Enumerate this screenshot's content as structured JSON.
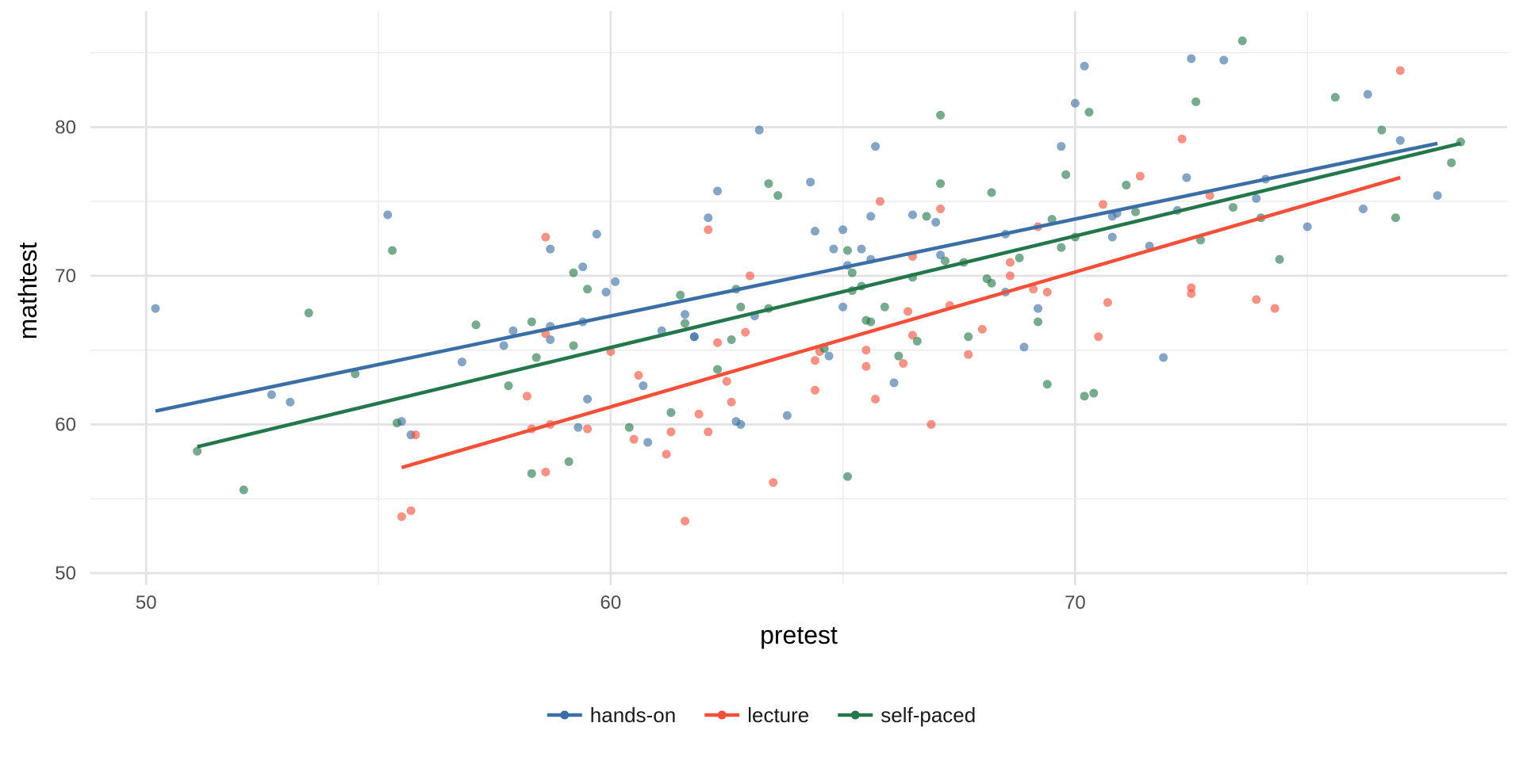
{
  "chart_data": {
    "type": "scatter",
    "title": "",
    "xlabel": "pretest",
    "ylabel": "mathtest",
    "xlim": [
      48.8,
      79.3
    ],
    "ylim": [
      49.2,
      87.8
    ],
    "x_ticks": [
      50,
      60,
      70
    ],
    "y_ticks": [
      50,
      60,
      70,
      80
    ],
    "x_minor_ticks": [
      55,
      65,
      75
    ],
    "y_minor_ticks": [
      55,
      65,
      75,
      85
    ],
    "grid": true,
    "legend_position": "bottom",
    "colors": {
      "hands-on": "#3a6ea5",
      "lecture": "#f44f39",
      "self-paced": "#24774a"
    },
    "series": [
      {
        "name": "hands-on",
        "trend": [
          [
            50.2,
            60.9
          ],
          [
            77.8,
            78.9
          ]
        ],
        "points": [
          [
            50.2,
            67.8
          ],
          [
            52.7,
            62.0
          ],
          [
            53.1,
            61.5
          ],
          [
            55.2,
            74.1
          ],
          [
            55.5,
            60.2
          ],
          [
            55.7,
            59.3
          ],
          [
            56.8,
            64.2
          ],
          [
            57.7,
            65.3
          ],
          [
            57.9,
            66.3
          ],
          [
            58.7,
            65.7
          ],
          [
            58.7,
            66.6
          ],
          [
            58.7,
            71.8
          ],
          [
            59.3,
            59.8
          ],
          [
            59.4,
            66.9
          ],
          [
            59.4,
            70.6
          ],
          [
            59.5,
            61.7
          ],
          [
            59.7,
            72.8
          ],
          [
            59.9,
            68.9
          ],
          [
            60.1,
            69.6
          ],
          [
            60.7,
            62.6
          ],
          [
            60.8,
            58.8
          ],
          [
            61.1,
            66.3
          ],
          [
            61.6,
            67.4
          ],
          [
            61.8,
            65.9
          ],
          [
            61.8,
            65.9
          ],
          [
            62.1,
            73.9
          ],
          [
            62.3,
            75.7
          ],
          [
            62.7,
            60.2
          ],
          [
            62.8,
            60.0
          ],
          [
            63.1,
            67.3
          ],
          [
            63.2,
            79.8
          ],
          [
            63.8,
            60.6
          ],
          [
            64.3,
            76.3
          ],
          [
            64.4,
            73.0
          ],
          [
            64.7,
            64.6
          ],
          [
            64.8,
            71.8
          ],
          [
            65.0,
            67.9
          ],
          [
            65.0,
            73.1
          ],
          [
            65.1,
            70.7
          ],
          [
            65.4,
            71.8
          ],
          [
            65.6,
            74.0
          ],
          [
            65.6,
            71.1
          ],
          [
            65.7,
            78.7
          ],
          [
            66.1,
            62.8
          ],
          [
            66.5,
            74.1
          ],
          [
            67.0,
            73.6
          ],
          [
            67.1,
            71.4
          ],
          [
            68.5,
            68.9
          ],
          [
            68.5,
            72.8
          ],
          [
            68.9,
            65.2
          ],
          [
            69.2,
            67.8
          ],
          [
            69.7,
            78.7
          ],
          [
            70.0,
            81.6
          ],
          [
            70.2,
            84.1
          ],
          [
            70.8,
            72.6
          ],
          [
            70.8,
            74.0
          ],
          [
            70.9,
            74.2
          ],
          [
            71.6,
            72.0
          ],
          [
            71.9,
            64.5
          ],
          [
            72.2,
            74.4
          ],
          [
            72.4,
            76.6
          ],
          [
            72.5,
            84.6
          ],
          [
            73.2,
            84.5
          ],
          [
            73.9,
            75.2
          ],
          [
            74.1,
            76.5
          ],
          [
            75.0,
            73.3
          ],
          [
            76.2,
            74.5
          ],
          [
            76.3,
            82.2
          ],
          [
            77.0,
            79.1
          ],
          [
            77.8,
            75.4
          ]
        ]
      },
      {
        "name": "lecture",
        "trend": [
          [
            55.5,
            57.1
          ],
          [
            77.0,
            76.6
          ]
        ],
        "points": [
          [
            55.5,
            53.8
          ],
          [
            55.7,
            54.2
          ],
          [
            55.8,
            59.3
          ],
          [
            58.2,
            61.9
          ],
          [
            58.3,
            59.7
          ],
          [
            58.6,
            56.8
          ],
          [
            58.7,
            60.0
          ],
          [
            58.6,
            66.1
          ],
          [
            58.6,
            72.6
          ],
          [
            59.5,
            59.7
          ],
          [
            60.0,
            64.9
          ],
          [
            60.5,
            59.0
          ],
          [
            60.6,
            63.3
          ],
          [
            61.2,
            58.0
          ],
          [
            61.3,
            59.5
          ],
          [
            61.6,
            53.5
          ],
          [
            61.9,
            60.7
          ],
          [
            62.1,
            59.5
          ],
          [
            62.1,
            73.1
          ],
          [
            62.3,
            65.5
          ],
          [
            62.5,
            62.9
          ],
          [
            62.6,
            61.5
          ],
          [
            62.9,
            66.2
          ],
          [
            63.0,
            70.0
          ],
          [
            63.5,
            56.1
          ],
          [
            64.4,
            62.3
          ],
          [
            64.4,
            64.3
          ],
          [
            64.5,
            64.9
          ],
          [
            65.5,
            63.9
          ],
          [
            65.5,
            65.0
          ],
          [
            65.7,
            61.7
          ],
          [
            65.8,
            75.0
          ],
          [
            66.3,
            64.1
          ],
          [
            66.4,
            67.6
          ],
          [
            66.5,
            66.0
          ],
          [
            66.5,
            71.3
          ],
          [
            66.9,
            60.0
          ],
          [
            67.1,
            74.5
          ],
          [
            67.3,
            68.0
          ],
          [
            67.7,
            64.7
          ],
          [
            68.0,
            66.4
          ],
          [
            68.6,
            70.0
          ],
          [
            68.6,
            70.9
          ],
          [
            69.1,
            69.1
          ],
          [
            69.2,
            73.3
          ],
          [
            69.4,
            68.9
          ],
          [
            70.5,
            65.9
          ],
          [
            70.6,
            74.8
          ],
          [
            70.7,
            68.2
          ],
          [
            71.4,
            76.7
          ],
          [
            72.3,
            79.2
          ],
          [
            72.5,
            68.8
          ],
          [
            72.5,
            69.2
          ],
          [
            72.9,
            75.4
          ],
          [
            73.9,
            68.4
          ],
          [
            74.3,
            67.8
          ],
          [
            77.0,
            83.8
          ]
        ]
      },
      {
        "name": "self-paced",
        "trend": [
          [
            51.1,
            58.5
          ],
          [
            78.3,
            78.9
          ]
        ],
        "points": [
          [
            51.1,
            58.2
          ],
          [
            52.1,
            55.6
          ],
          [
            53.5,
            67.5
          ],
          [
            54.5,
            63.4
          ],
          [
            55.3,
            71.7
          ],
          [
            55.4,
            60.1
          ],
          [
            57.1,
            66.7
          ],
          [
            57.8,
            62.6
          ],
          [
            58.3,
            66.9
          ],
          [
            58.4,
            64.5
          ],
          [
            58.3,
            56.7
          ],
          [
            59.1,
            57.5
          ],
          [
            59.2,
            65.3
          ],
          [
            59.2,
            70.2
          ],
          [
            59.5,
            69.1
          ],
          [
            60.4,
            59.8
          ],
          [
            61.3,
            60.8
          ],
          [
            61.5,
            68.7
          ],
          [
            61.6,
            66.8
          ],
          [
            62.3,
            63.7
          ],
          [
            62.6,
            65.7
          ],
          [
            62.7,
            69.1
          ],
          [
            62.8,
            67.9
          ],
          [
            63.4,
            67.8
          ],
          [
            63.4,
            76.2
          ],
          [
            63.6,
            75.4
          ],
          [
            64.6,
            65.1
          ],
          [
            65.1,
            56.5
          ],
          [
            65.1,
            71.7
          ],
          [
            65.2,
            69.0
          ],
          [
            65.2,
            70.2
          ],
          [
            65.4,
            69.3
          ],
          [
            65.5,
            67.0
          ],
          [
            65.6,
            66.9
          ],
          [
            65.9,
            67.9
          ],
          [
            66.2,
            64.6
          ],
          [
            66.5,
            69.9
          ],
          [
            66.6,
            65.6
          ],
          [
            66.8,
            74.0
          ],
          [
            67.1,
            80.8
          ],
          [
            67.1,
            76.2
          ],
          [
            67.2,
            71.0
          ],
          [
            67.6,
            70.9
          ],
          [
            67.7,
            65.9
          ],
          [
            68.1,
            69.8
          ],
          [
            68.2,
            69.5
          ],
          [
            68.2,
            75.6
          ],
          [
            68.8,
            71.2
          ],
          [
            69.2,
            66.9
          ],
          [
            69.4,
            62.7
          ],
          [
            69.5,
            73.8
          ],
          [
            69.7,
            71.9
          ],
          [
            69.8,
            76.8
          ],
          [
            70.0,
            72.6
          ],
          [
            70.2,
            61.9
          ],
          [
            70.3,
            81.0
          ],
          [
            70.4,
            62.1
          ],
          [
            71.1,
            76.1
          ],
          [
            71.3,
            74.3
          ],
          [
            72.6,
            81.7
          ],
          [
            72.7,
            72.4
          ],
          [
            73.4,
            74.6
          ],
          [
            73.6,
            85.8
          ],
          [
            74.0,
            73.9
          ],
          [
            74.4,
            71.1
          ],
          [
            75.6,
            82.0
          ],
          [
            76.6,
            79.8
          ],
          [
            76.9,
            73.9
          ],
          [
            78.1,
            77.6
          ],
          [
            78.3,
            79.0
          ]
        ]
      }
    ]
  }
}
